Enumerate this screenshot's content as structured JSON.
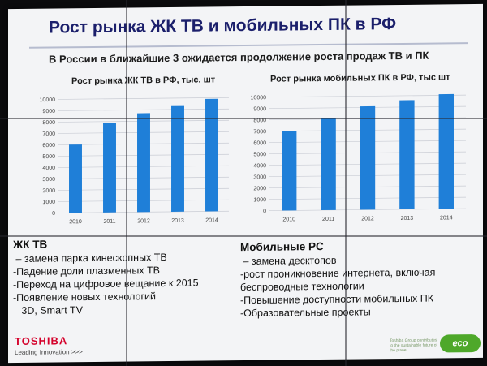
{
  "slide": {
    "title": "Рост рынка ЖК ТВ и мобильных ПК в РФ",
    "subtitle": "В России в ближайшие 3 ожидается продолжение роста продаж ТВ и ПК"
  },
  "chart_data": [
    {
      "type": "bar",
      "title": "Рост рынка ЖК ТВ в РФ, тыс. шт",
      "categories": [
        "2010",
        "2011",
        "2012",
        "2013",
        "2014"
      ],
      "values": [
        6000,
        7900,
        8700,
        9300,
        9900
      ],
      "ylim": [
        0,
        10000
      ],
      "yticks": [
        "0",
        "1000",
        "2000",
        "3000",
        "4000",
        "5000",
        "6000",
        "7000",
        "8000",
        "9000",
        "10000"
      ],
      "grid": true,
      "color": "#1f7fd8"
    },
    {
      "type": "bar",
      "title": "Рост рынка мобильных ПК в РФ, тыс шт",
      "categories": [
        "2010",
        "2011",
        "2012",
        "2013",
        "2014"
      ],
      "values": [
        7000,
        8100,
        9100,
        9600,
        10100
      ],
      "ylim": [
        0,
        10000
      ],
      "yticks": [
        "0",
        "1000",
        "2000",
        "3000",
        "4000",
        "5000",
        "6000",
        "7000",
        "8000",
        "9000",
        "10000"
      ],
      "grid": true,
      "color": "#1f7fd8"
    }
  ],
  "tv_list": {
    "head": "ЖК ТВ",
    "items": [
      " – замена парка кинескопных ТВ",
      "-Падение доли плазменных ТВ",
      "-Переход на цифровое вещание к 2015",
      "-Появление новых технологий",
      "   3D, Smart TV"
    ]
  },
  "pc_list": {
    "head": "Мобильные PC",
    "items": [
      " – замена десктопов",
      "-рост проникновение интернета, включая",
      "беспроводные технологии",
      "-Повышение доступности мобильных ПК",
      "-Образовательные проекты"
    ]
  },
  "footer": {
    "brand": "TOSHIBA",
    "tagline": "Leading Innovation >>>",
    "eco_label": "eco",
    "eco_note": "Toshiba Group contributes to the sustainable future of the planet"
  },
  "colors": {
    "accent": "#1f7fd8",
    "title": "#1b1f6b",
    "brand": "#d4002a",
    "eco": "#4ea82a"
  }
}
